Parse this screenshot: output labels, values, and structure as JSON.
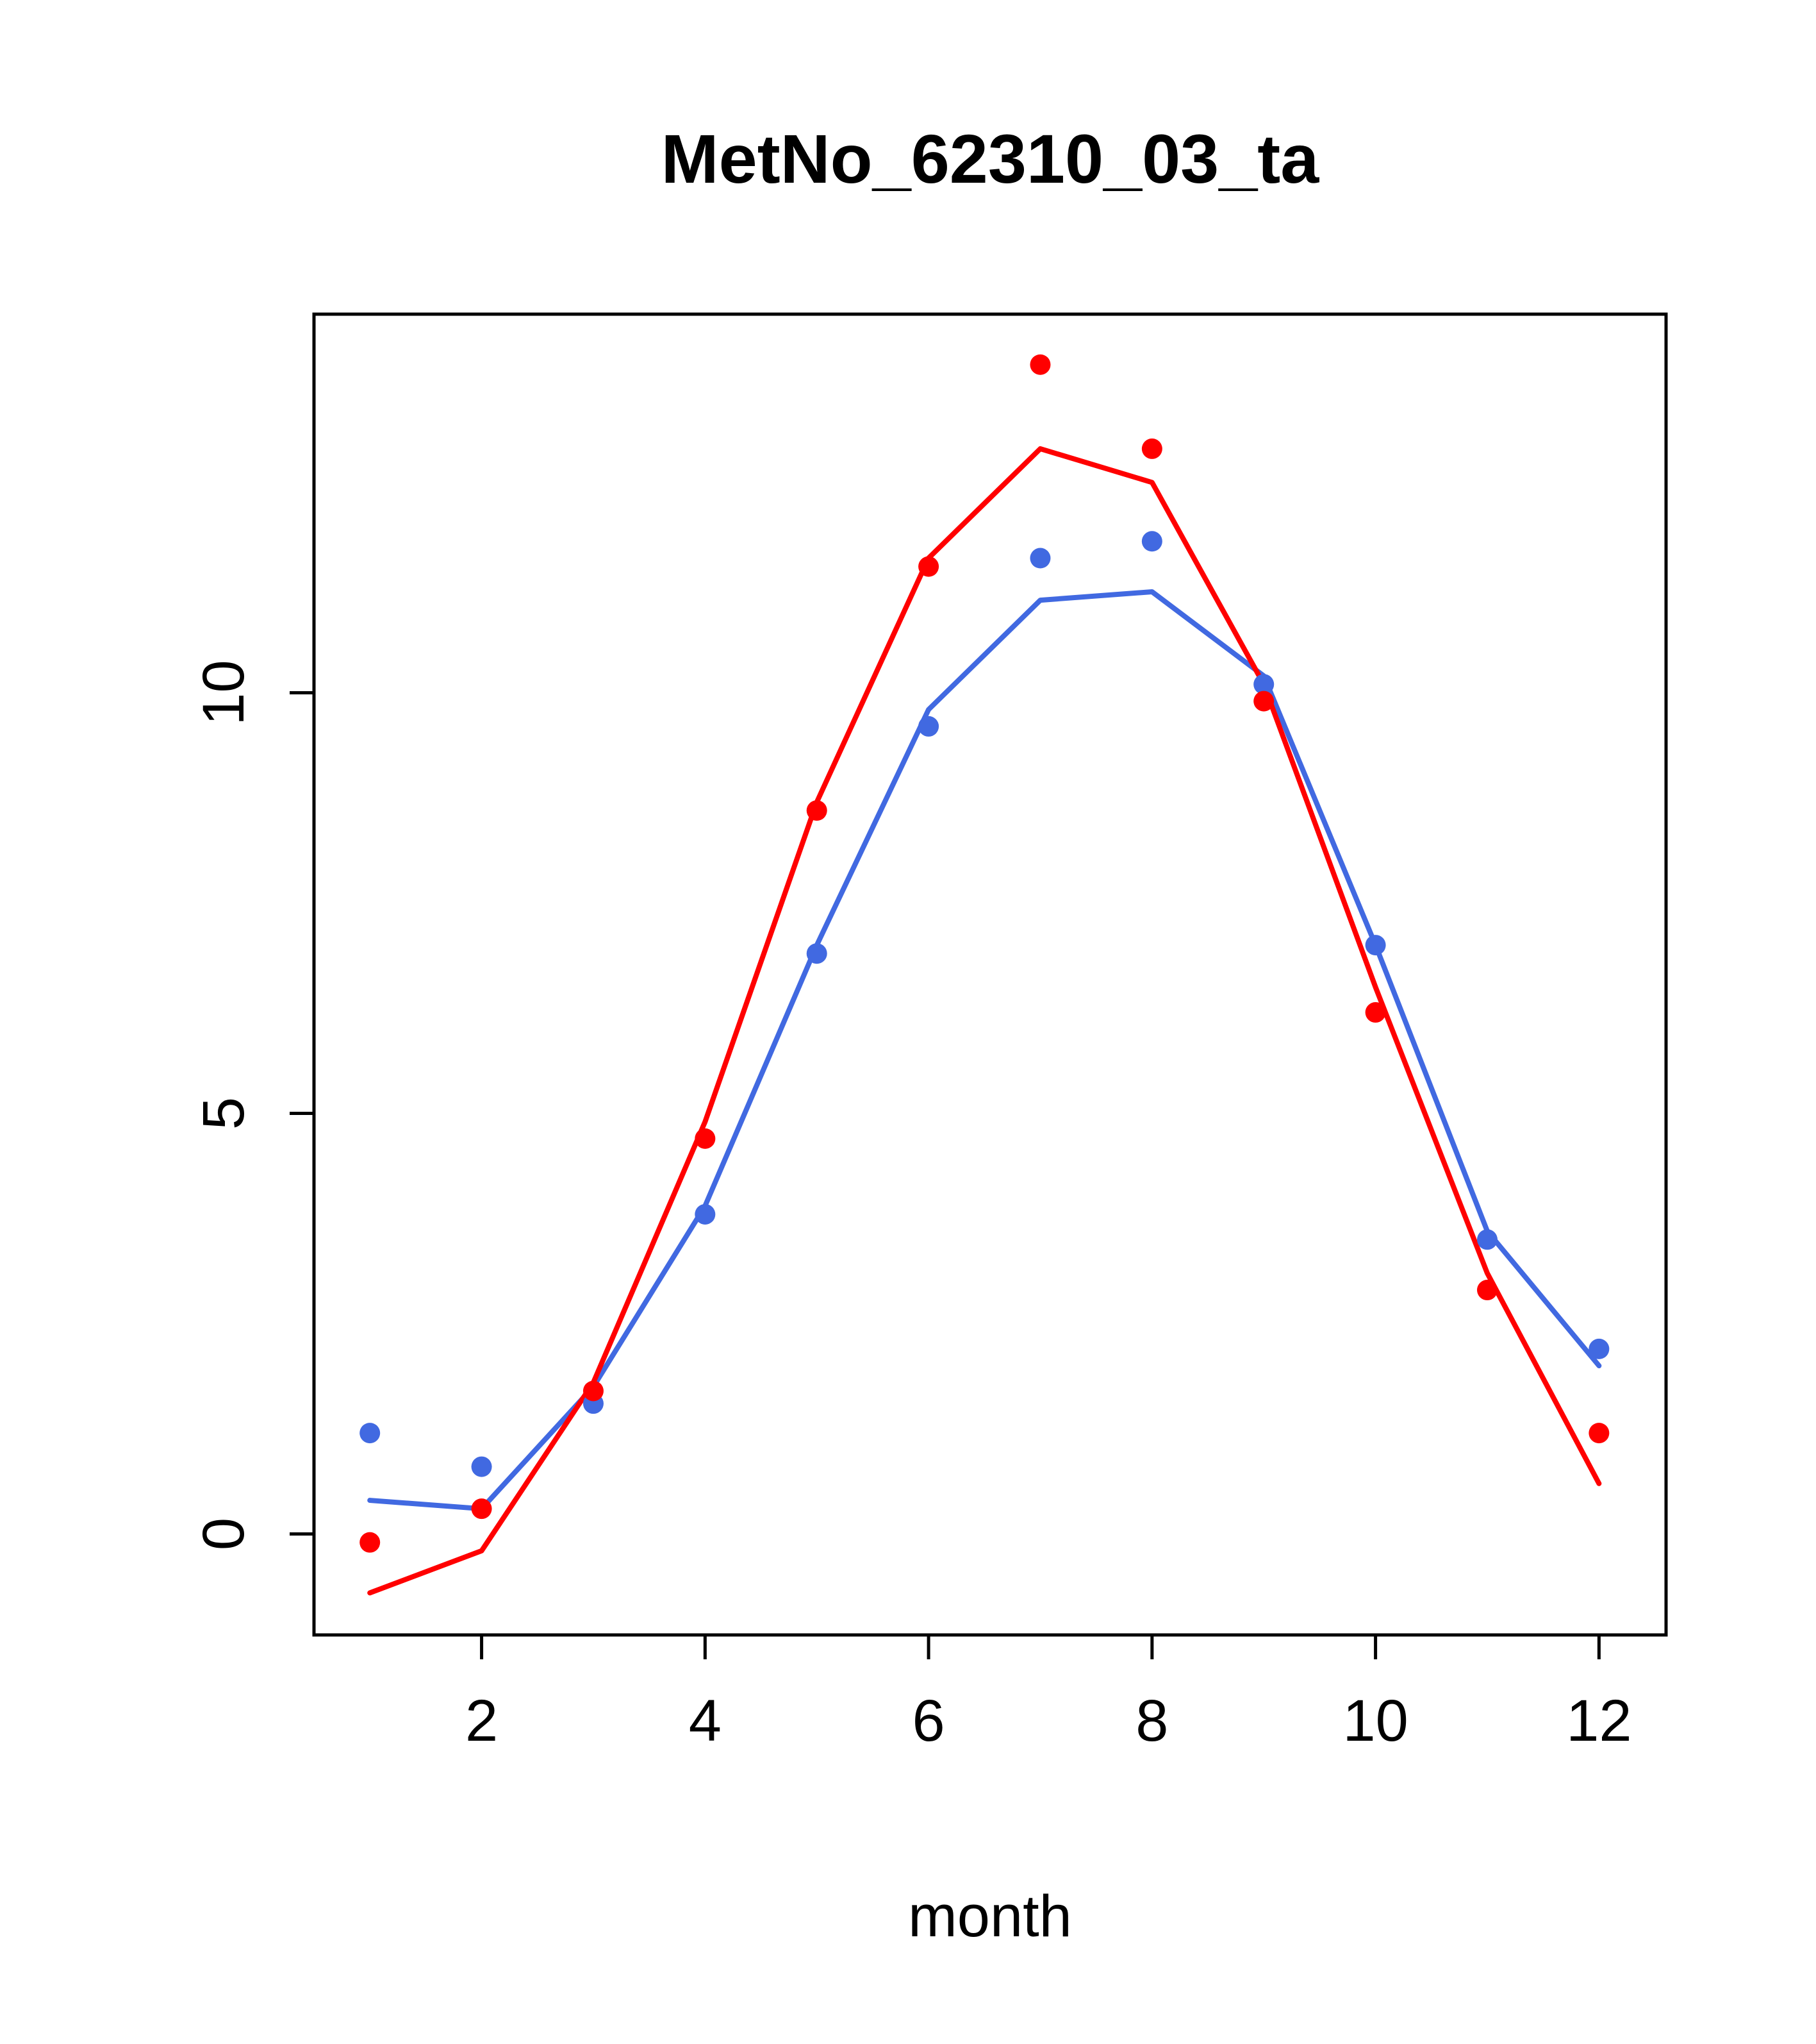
{
  "page": {
    "background_color": "#FFFFFF",
    "accent_red": "#FF0000",
    "accent_blue": "#4169E1"
  },
  "chart_data": {
    "type": "line",
    "title": "MetNo_62310_03_ta",
    "xlabel": "month",
    "ylabel": "",
    "x": [
      1,
      2,
      3,
      4,
      5,
      6,
      7,
      8,
      9,
      10,
      11,
      12
    ],
    "xticks": [
      2,
      4,
      6,
      8,
      10,
      12
    ],
    "yticks": [
      0,
      5,
      10
    ],
    "xlim": [
      0.5,
      12.6
    ],
    "ylim": [
      -1.2,
      14.5
    ],
    "grid": false,
    "legend": "none",
    "series": [
      {
        "name": "blue-line",
        "kind": "line",
        "color": "#4169E1",
        "values": [
          0.4,
          0.3,
          1.75,
          3.9,
          7.0,
          9.8,
          11.1,
          11.2,
          10.2,
          7.0,
          3.6,
          2.0
        ]
      },
      {
        "name": "red-line",
        "kind": "line",
        "color": "#FF0000",
        "values": [
          -0.7,
          -0.2,
          1.8,
          4.9,
          8.7,
          11.6,
          12.9,
          12.5,
          10.1,
          6.5,
          3.1,
          0.6
        ]
      },
      {
        "name": "blue-points",
        "kind": "scatter",
        "color": "#4169E1",
        "values": [
          1.2,
          0.8,
          1.55,
          3.8,
          6.9,
          9.6,
          11.6,
          11.8,
          10.1,
          7.0,
          3.5,
          2.2
        ]
      },
      {
        "name": "red-points",
        "kind": "scatter",
        "color": "#FF0000",
        "values": [
          -0.1,
          0.3,
          1.7,
          4.7,
          8.6,
          11.5,
          13.9,
          12.9,
          9.9,
          6.2,
          2.9,
          1.2
        ]
      }
    ]
  }
}
